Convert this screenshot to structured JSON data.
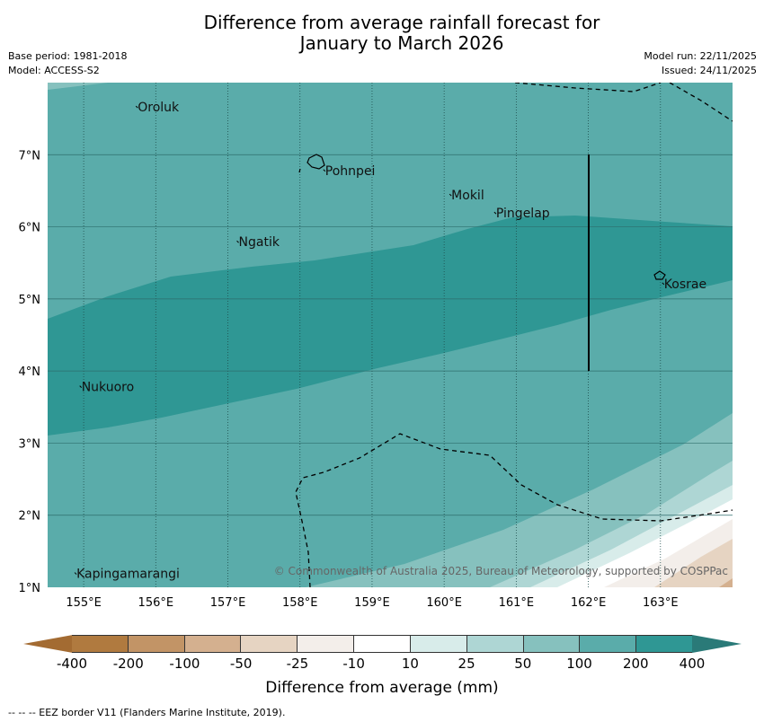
{
  "title_line1": "Difference from average rainfall forecast for",
  "title_line2": "January to March 2026",
  "meta_left": {
    "base_period": "Base period: 1981-2018",
    "model": "Model: ACCESS-S2"
  },
  "meta_right": {
    "model_run": "Model run: 22/11/2025",
    "issued": "Issued: 24/11/2025"
  },
  "map": {
    "lon_range": [
      154.5,
      164.0
    ],
    "lat_range": [
      1.0,
      8.0
    ],
    "lon_ticks": [
      155,
      156,
      157,
      158,
      159,
      160,
      161,
      162,
      163
    ],
    "lon_labels": [
      "155°E",
      "156°E",
      "157°E",
      "158°E",
      "159°E",
      "160°E",
      "161°E",
      "162°E",
      "163°E"
    ],
    "lat_ticks": [
      1,
      2,
      3,
      4,
      5,
      6,
      7
    ],
    "lat_labels": [
      "1°N",
      "2°N",
      "3°N",
      "4°N",
      "5°N",
      "6°N",
      "7°N"
    ],
    "places": [
      {
        "name": "Oroluk",
        "lon": 155.75,
        "lat": 7.6
      },
      {
        "name": "Pohnpei",
        "lon": 158.35,
        "lat": 6.72
      },
      {
        "name": "Mokil",
        "lon": 160.1,
        "lat": 6.38
      },
      {
        "name": "Pingelap",
        "lon": 160.72,
        "lat": 6.13
      },
      {
        "name": "Ngatik",
        "lon": 157.15,
        "lat": 5.73
      },
      {
        "name": "Kosrae",
        "lon": 163.05,
        "lat": 5.15
      },
      {
        "name": "Nukuoro",
        "lon": 154.97,
        "lat": 3.72
      },
      {
        "name": "Kapingamarangi",
        "lon": 154.9,
        "lat": 1.13
      }
    ],
    "copyright": "© Commonwealth of Australia 2025, Bureau of Meteorology, supported by COSPPac"
  },
  "legend": {
    "bins": [
      "#b07a3f",
      "#c29466",
      "#d4b08f",
      "#e6d4c2",
      "#f3eeea",
      "#ffffff",
      "#d8ecea",
      "#aed6d4",
      "#86c1be",
      "#5aacaa",
      "#2f9794"
    ],
    "under_color": "#a36b32",
    "over_color": "#2a7a78",
    "tick_labels": [
      "-400",
      "-200",
      "-100",
      "-50",
      "-25",
      "-10",
      "10",
      "25",
      "50",
      "100",
      "200",
      "400"
    ],
    "title": "Difference from average (mm)"
  },
  "footer": "--  --  -- EEZ border V11 (Flanders Marine Institute, 2019)."
}
